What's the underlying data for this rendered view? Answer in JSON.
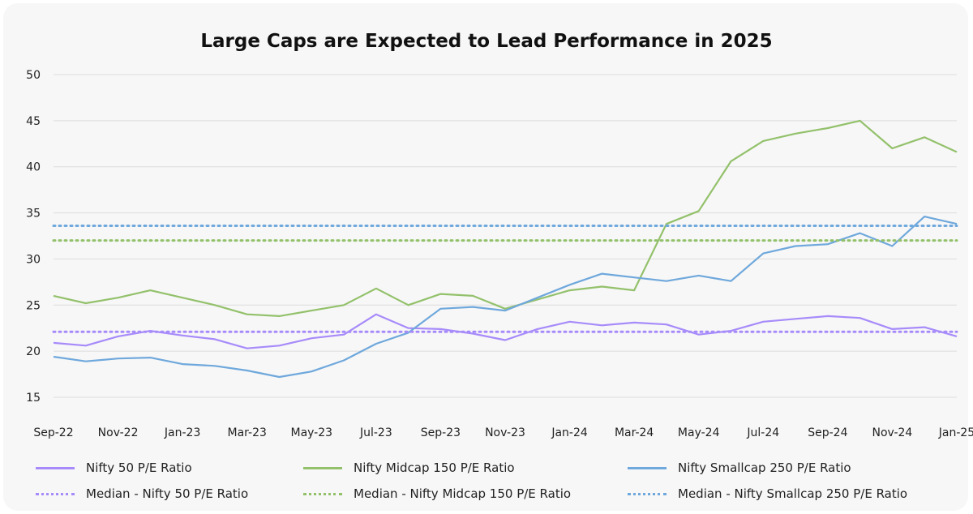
{
  "chart_data": {
    "type": "line",
    "title": "Large Caps are Expected to Lead Performance in 2025",
    "x_tick_labels": [
      "Sep-22",
      "Nov-22",
      "Jan-23",
      "Mar-23",
      "May-23",
      "Jul-23",
      "Sep-23",
      "Nov-23",
      "Jan-24",
      "Mar-24",
      "May-24",
      "Jul-24",
      "Sep-24",
      "Nov-24",
      "Jan-25"
    ],
    "x_range": [
      "Sep-22",
      "Jan-25"
    ],
    "ylim": [
      15,
      50
    ],
    "y_ticks": [
      15,
      20,
      25,
      30,
      35,
      40,
      45,
      50
    ],
    "grid": "horizontal",
    "legend_position": "bottom",
    "series": [
      {
        "name": "Nifty 50 P/E Ratio",
        "color": "#a78bfa",
        "style": "solid",
        "points": [
          [
            "Sep-22",
            20.9
          ],
          [
            "Oct-22",
            20.6
          ],
          [
            "Nov-22",
            21.6
          ],
          [
            "Dec-22",
            22.2
          ],
          [
            "Jan-23",
            21.7
          ],
          [
            "Feb-23",
            21.3
          ],
          [
            "Mar-23",
            20.3
          ],
          [
            "Apr-23",
            20.6
          ],
          [
            "May-23",
            21.4
          ],
          [
            "Jun-23",
            21.8
          ],
          [
            "Jul-23",
            24.0
          ],
          [
            "Aug-23",
            22.5
          ],
          [
            "Sep-23",
            22.4
          ],
          [
            "Oct-23",
            21.9
          ],
          [
            "Nov-23",
            21.2
          ],
          [
            "Dec-23",
            22.4
          ],
          [
            "Jan-24",
            23.2
          ],
          [
            "Feb-24",
            22.8
          ],
          [
            "Mar-24",
            23.1
          ],
          [
            "Apr-24",
            22.9
          ],
          [
            "May-24",
            21.8
          ],
          [
            "Jun-24",
            22.2
          ],
          [
            "Jul-24",
            23.2
          ],
          [
            "Aug-24",
            23.5
          ],
          [
            "Sep-24",
            23.8
          ],
          [
            "Oct-24",
            23.6
          ],
          [
            "Nov-24",
            22.4
          ],
          [
            "Dec-24",
            22.6
          ],
          [
            "Jan-25",
            21.6
          ]
        ]
      },
      {
        "name": "Nifty Midcap 150 P/E Ratio",
        "color": "#93c16b",
        "style": "solid",
        "points": [
          [
            "Sep-22",
            26.0
          ],
          [
            "Oct-22",
            25.2
          ],
          [
            "Nov-22",
            25.8
          ],
          [
            "Dec-22",
            26.6
          ],
          [
            "Jan-23",
            25.8
          ],
          [
            "Feb-23",
            25.0
          ],
          [
            "Mar-23",
            24.0
          ],
          [
            "Apr-23",
            23.8
          ],
          [
            "May-23",
            24.4
          ],
          [
            "Jun-23",
            25.0
          ],
          [
            "Jul-23",
            26.8
          ],
          [
            "Aug-23",
            25.0
          ],
          [
            "Sep-23",
            26.2
          ],
          [
            "Oct-23",
            26.0
          ],
          [
            "Nov-23",
            24.6
          ],
          [
            "Dec-23",
            25.6
          ],
          [
            "Jan-24",
            26.6
          ],
          [
            "Feb-24",
            27.0
          ],
          [
            "Mar-24",
            26.6
          ],
          [
            "Apr-24",
            33.8
          ],
          [
            "May-24",
            35.2
          ],
          [
            "Jun-24",
            40.6
          ],
          [
            "Jul-24",
            42.8
          ],
          [
            "Aug-24",
            43.6
          ],
          [
            "Sep-24",
            44.2
          ],
          [
            "Oct-24",
            45.0
          ],
          [
            "Nov-24",
            42.0
          ],
          [
            "Dec-24",
            43.2
          ],
          [
            "Jan-25",
            41.6
          ]
        ]
      },
      {
        "name": "Nifty Smallcap 250 P/E Ratio",
        "color": "#6fa8dc",
        "style": "solid",
        "points": [
          [
            "Sep-22",
            19.4
          ],
          [
            "Oct-22",
            18.9
          ],
          [
            "Nov-22",
            19.2
          ],
          [
            "Dec-22",
            19.3
          ],
          [
            "Jan-23",
            18.6
          ],
          [
            "Feb-23",
            18.4
          ],
          [
            "Mar-23",
            17.9
          ],
          [
            "Apr-23",
            17.2
          ],
          [
            "May-23",
            17.8
          ],
          [
            "Jun-23",
            19.0
          ],
          [
            "Jul-23",
            20.8
          ],
          [
            "Aug-23",
            22.0
          ],
          [
            "Sep-23",
            24.6
          ],
          [
            "Oct-23",
            24.8
          ],
          [
            "Nov-23",
            24.4
          ],
          [
            "Dec-23",
            25.8
          ],
          [
            "Jan-24",
            27.2
          ],
          [
            "Feb-24",
            28.4
          ],
          [
            "Mar-24",
            28.0
          ],
          [
            "Apr-24",
            27.6
          ],
          [
            "May-24",
            28.2
          ],
          [
            "Jun-24",
            27.6
          ],
          [
            "Jul-24",
            30.6
          ],
          [
            "Aug-24",
            31.4
          ],
          [
            "Sep-24",
            31.6
          ],
          [
            "Oct-24",
            32.8
          ],
          [
            "Nov-24",
            31.4
          ],
          [
            "Dec-24",
            34.6
          ],
          [
            "Jan-25",
            33.8
          ]
        ]
      },
      {
        "name": "Median - Nifty 50 P/E Ratio",
        "color": "#a78bfa",
        "style": "dotted",
        "value": 22.1
      },
      {
        "name": "Median - Nifty Midcap 150 P/E Ratio",
        "color": "#93c16b",
        "style": "dotted",
        "value": 32.0
      },
      {
        "name": "Median - Nifty Smallcap 250 P/E Ratio",
        "color": "#6fa8dc",
        "style": "dotted",
        "value": 33.6
      }
    ]
  }
}
